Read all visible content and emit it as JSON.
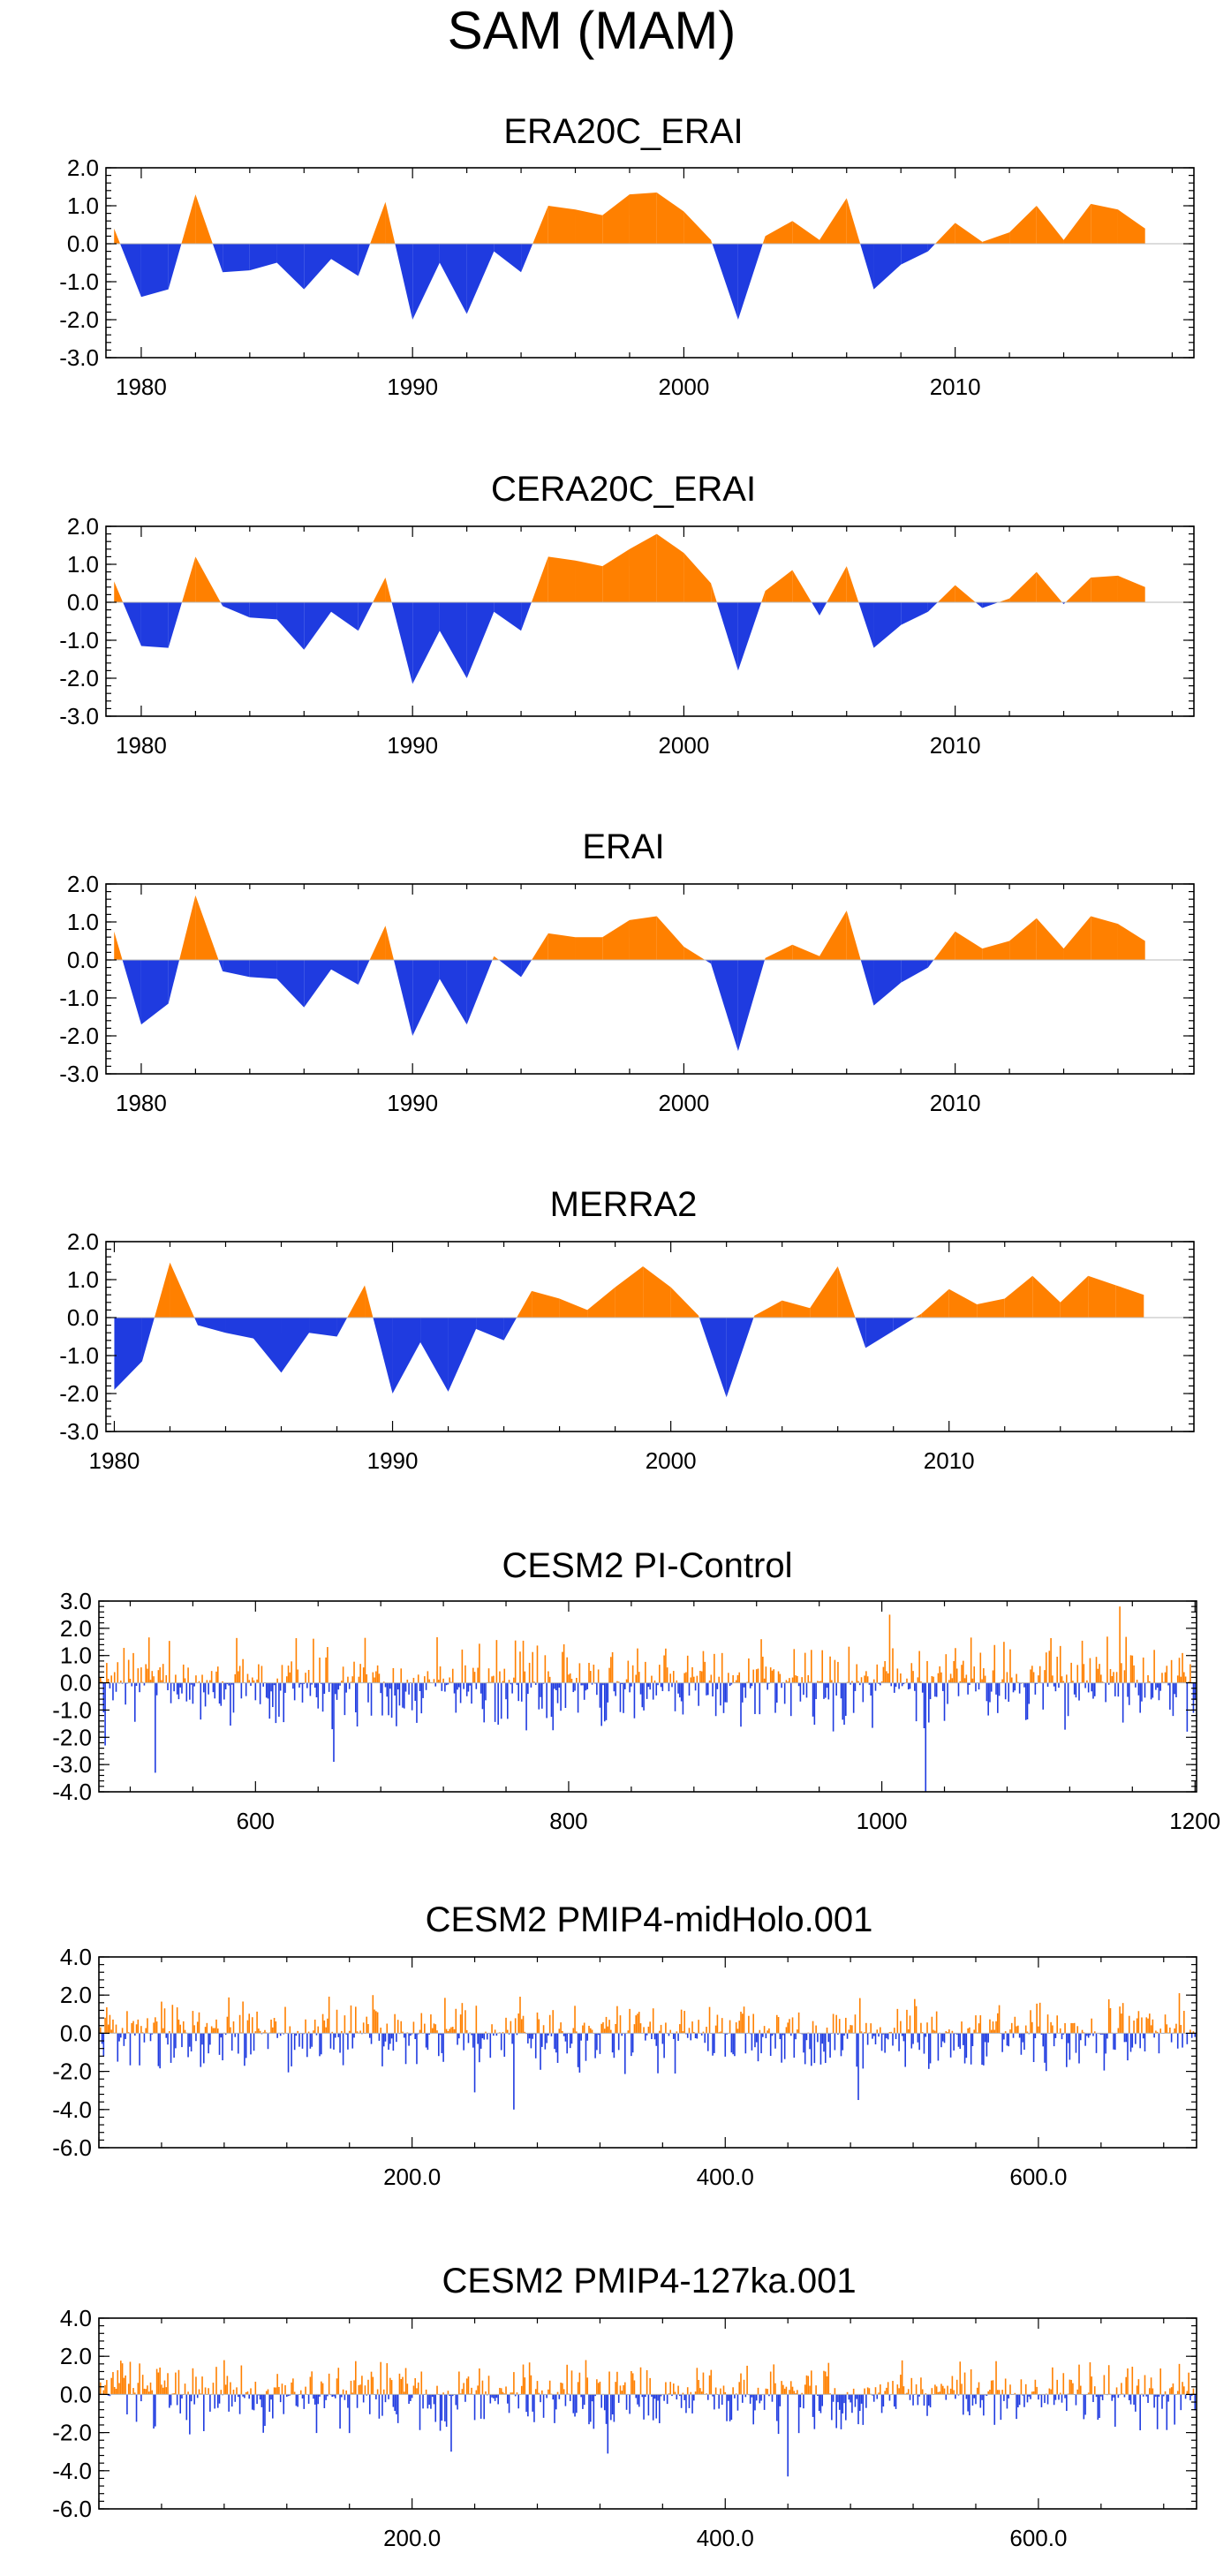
{
  "title": "SAM (MAM)",
  "colors": {
    "positive": "#ff8000",
    "negative": "#1f3be0",
    "frame": "#000000",
    "zero_line": "#b8b8b8"
  },
  "chart_data": [
    {
      "type": "area",
      "title": "ERA20C_ERAI",
      "xlim": [
        1978.7,
        2018.8
      ],
      "ylim": [
        -3.0,
        2.0
      ],
      "yticks": [
        2.0,
        1.0,
        0.0,
        -1.0,
        -2.0,
        -3.0
      ],
      "ytick_labels": [
        "2.0",
        "1.0",
        "0.0",
        "-1.0",
        "-2.0",
        "-3.0"
      ],
      "xticks": [
        1980,
        1990,
        2000,
        2010
      ],
      "xtick_labels": [
        "1980",
        "1990",
        "2000",
        "2010"
      ],
      "x": [
        1979,
        1980,
        1981,
        1982,
        1983,
        1984,
        1985,
        1986,
        1987,
        1988,
        1989,
        1990,
        1991,
        1992,
        1993,
        1994,
        1995,
        1996,
        1997,
        1998,
        1999,
        2000,
        2001,
        2002,
        2003,
        2004,
        2005,
        2006,
        2007,
        2008,
        2009,
        2010,
        2011,
        2012,
        2013,
        2014,
        2015,
        2016,
        2017
      ],
      "values": [
        0.4,
        -1.4,
        -1.2,
        1.3,
        -0.75,
        -0.7,
        -0.5,
        -1.2,
        -0.4,
        -0.85,
        1.1,
        -2.0,
        -0.5,
        -1.85,
        -0.2,
        -0.75,
        1.0,
        0.9,
        0.75,
        1.3,
        1.35,
        0.85,
        0.1,
        -2.0,
        0.2,
        0.6,
        0.1,
        1.2,
        -1.2,
        -0.55,
        -0.2,
        0.55,
        0.05,
        0.3,
        1.0,
        0.1,
        1.05,
        0.9,
        0.4
      ]
    },
    {
      "type": "area",
      "title": "CERA20C_ERAI",
      "xlim": [
        1978.7,
        2018.8
      ],
      "ylim": [
        -3.0,
        2.0
      ],
      "yticks": [
        2.0,
        1.0,
        0.0,
        -1.0,
        -2.0,
        -3.0
      ],
      "ytick_labels": [
        "2.0",
        "1.0",
        "0.0",
        "-1.0",
        "-2.0",
        "-3.0"
      ],
      "xticks": [
        1980,
        1990,
        2000,
        2010
      ],
      "xtick_labels": [
        "1980",
        "1990",
        "2000",
        "2010"
      ],
      "x": [
        1979,
        1980,
        1981,
        1982,
        1983,
        1984,
        1985,
        1986,
        1987,
        1988,
        1989,
        1990,
        1991,
        1992,
        1993,
        1994,
        1995,
        1996,
        1997,
        1998,
        1999,
        2000,
        2001,
        2002,
        2003,
        2004,
        2005,
        2006,
        2007,
        2008,
        2009,
        2010,
        2011,
        2012,
        2013,
        2014,
        2015,
        2016,
        2017
      ],
      "values": [
        0.55,
        -1.15,
        -1.2,
        1.2,
        -0.1,
        -0.4,
        -0.45,
        -1.25,
        -0.25,
        -0.75,
        0.65,
        -2.15,
        -0.75,
        -2.0,
        -0.25,
        -0.75,
        1.2,
        1.1,
        0.95,
        1.4,
        1.8,
        1.3,
        0.5,
        -1.8,
        0.3,
        0.85,
        -0.35,
        0.95,
        -1.2,
        -0.6,
        -0.25,
        0.45,
        -0.15,
        0.1,
        0.8,
        -0.05,
        0.65,
        0.7,
        0.4
      ]
    },
    {
      "type": "area",
      "title": "ERAI",
      "xlim": [
        1978.7,
        2018.8
      ],
      "ylim": [
        -3.0,
        2.0
      ],
      "yticks": [
        2.0,
        1.0,
        0.0,
        -1.0,
        -2.0,
        -3.0
      ],
      "ytick_labels": [
        "2.0",
        "1.0",
        "0.0",
        "-1.0",
        "-2.0",
        "-3.0"
      ],
      "xticks": [
        1980,
        1990,
        2000,
        2010
      ],
      "xtick_labels": [
        "1980",
        "1990",
        "2000",
        "2010"
      ],
      "x": [
        1979,
        1980,
        1981,
        1982,
        1983,
        1984,
        1985,
        1986,
        1987,
        1988,
        1989,
        1990,
        1991,
        1992,
        1993,
        1994,
        1995,
        1996,
        1997,
        1998,
        1999,
        2000,
        2001,
        2002,
        2003,
        2004,
        2005,
        2006,
        2007,
        2008,
        2009,
        2010,
        2011,
        2012,
        2013,
        2014,
        2015,
        2016,
        2017
      ],
      "values": [
        0.75,
        -1.7,
        -1.15,
        1.7,
        -0.3,
        -0.45,
        -0.5,
        -1.25,
        -0.25,
        -0.65,
        0.9,
        -2.0,
        -0.5,
        -1.7,
        0.1,
        -0.45,
        0.7,
        0.6,
        0.6,
        1.05,
        1.15,
        0.35,
        -0.1,
        -2.4,
        0.05,
        0.4,
        0.1,
        1.3,
        -1.2,
        -0.6,
        -0.2,
        0.75,
        0.3,
        0.5,
        1.1,
        0.3,
        1.15,
        0.95,
        0.5
      ]
    },
    {
      "type": "area",
      "title": "MERRA2",
      "xlim": [
        1979.7,
        2018.8
      ],
      "ylim": [
        -3.0,
        2.0
      ],
      "yticks": [
        2.0,
        1.0,
        0.0,
        -1.0,
        -2.0,
        -3.0
      ],
      "ytick_labels": [
        "2.0",
        "1.0",
        "0.0",
        "-1.0",
        "-2.0",
        "-3.0"
      ],
      "xticks": [
        1980,
        1990,
        2000,
        2010
      ],
      "xtick_labels": [
        "1980",
        "1990",
        "2000",
        "2010"
      ],
      "x": [
        1980,
        1981,
        1982,
        1983,
        1984,
        1985,
        1986,
        1987,
        1988,
        1989,
        1990,
        1991,
        1992,
        1993,
        1994,
        1995,
        1996,
        1997,
        1998,
        1999,
        2000,
        2001,
        2002,
        2003,
        2004,
        2005,
        2006,
        2007,
        2008,
        2009,
        2010,
        2011,
        2012,
        2013,
        2014,
        2015,
        2016,
        2017
      ],
      "values": [
        -1.9,
        -1.15,
        1.45,
        -0.2,
        -0.4,
        -0.55,
        -1.45,
        -0.4,
        -0.5,
        0.85,
        -2.0,
        -0.65,
        -1.95,
        -0.3,
        -0.6,
        0.7,
        0.5,
        0.2,
        0.8,
        1.35,
        0.8,
        0.05,
        -2.1,
        0.05,
        0.45,
        0.25,
        1.35,
        -0.8,
        -0.35,
        0.1,
        0.75,
        0.35,
        0.5,
        1.1,
        0.4,
        1.1,
        0.85,
        0.6
      ]
    },
    {
      "type": "bar",
      "title": "CESM2 PI-Control",
      "xlim": [
        500,
        1201
      ],
      "ylim": [
        -4.0,
        3.0
      ],
      "x_start": 501,
      "x_end": 1200,
      "seed": 11,
      "amp_pos": 0.75,
      "amp_neg": 0.8,
      "max_pos": 2.8,
      "min_neg": -4.0,
      "extremes": [
        [
          504,
          -2.3
        ],
        [
          536,
          -3.3
        ],
        [
          1028,
          -4.0
        ],
        [
          1152,
          2.8
        ],
        [
          1005,
          2.5
        ],
        [
          650,
          -2.9
        ]
      ],
      "yticks": [
        3.0,
        2.0,
        1.0,
        0.0,
        -1.0,
        -2.0,
        -3.0,
        -4.0
      ],
      "ytick_labels": [
        "3.0",
        "2.0",
        "1.0",
        "0.0",
        "-1.0",
        "-2.0",
        "-3.0",
        "-4.0"
      ],
      "xticks": [
        600,
        800,
        1000,
        1200
      ],
      "xtick_labels": [
        "600",
        "800",
        "1000",
        "1200"
      ]
    },
    {
      "type": "bar",
      "title": "CESM2 PMIP4-midHolo.001",
      "xlim": [
        0,
        701
      ],
      "ylim": [
        -6.0,
        4.0
      ],
      "x_start": 1,
      "x_end": 700,
      "seed": 23,
      "amp_pos": 0.85,
      "amp_neg": 0.95,
      "max_pos": 2.2,
      "min_neg": -4.0,
      "extremes": [
        [
          265,
          -4.0
        ],
        [
          485,
          -3.5
        ],
        [
          240,
          -3.1
        ],
        [
          175,
          2.0
        ],
        [
          690,
          2.1
        ]
      ],
      "yticks": [
        4.0,
        2.0,
        0.0,
        -2.0,
        -4.0,
        -6.0
      ],
      "ytick_labels": [
        "4.0",
        "2.0",
        "0.0",
        "-2.0",
        "-4.0",
        "-6.0"
      ],
      "xticks": [
        200,
        400,
        600
      ],
      "xtick_labels": [
        "200.0",
        "400.0",
        "600.0"
      ]
    },
    {
      "type": "bar",
      "title": "CESM2 PMIP4-127ka.001",
      "xlim": [
        0,
        701
      ],
      "ylim": [
        -6.0,
        4.0
      ],
      "x_start": 1,
      "x_end": 700,
      "seed": 37,
      "amp_pos": 0.8,
      "amp_neg": 0.95,
      "max_pos": 1.8,
      "min_neg": -4.3,
      "extremes": [
        [
          440,
          -4.3
        ],
        [
          325,
          -3.1
        ],
        [
          225,
          -3.0
        ],
        [
          180,
          1.7
        ],
        [
          690,
          1.6
        ]
      ],
      "yticks": [
        4.0,
        2.0,
        0.0,
        -2.0,
        -4.0,
        -6.0
      ],
      "ytick_labels": [
        "4.0",
        "2.0",
        "0.0",
        "-2.0",
        "-4.0",
        "-6.0"
      ],
      "xticks": [
        200,
        400,
        600
      ],
      "xtick_labels": [
        "200.0",
        "400.0",
        "600.0"
      ]
    }
  ]
}
